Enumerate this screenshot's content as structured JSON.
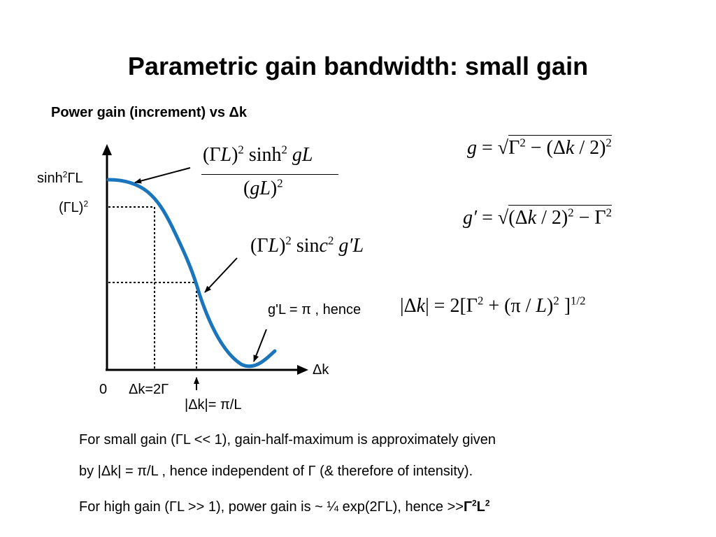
{
  "title": "Parametric gain bandwidth: small gain",
  "subtitle": "Power gain (increment) vs Δk",
  "axis": {
    "y_label_1": "sinh²ΓL",
    "y_label_2": "(ΓL)²",
    "x_label": "Δk",
    "origin": "0",
    "tick_1": "Δk=2Γ",
    "tick_2": "|Δk|= π/L"
  },
  "formulas": {
    "sinh_numerator": "(ΓL)² sinh² gL",
    "sinh_denominator": "(gL)²",
    "sinc": "(ΓL)² sinc² g′L",
    "g_def": "g = √(Γ² − (Δk / 2)²)",
    "gprime_def": "g′ = √((Δk / 2)² − Γ²)",
    "condition_prefix": "g'L = π ,  hence",
    "condition": "|Δk| = 2[Γ² + (π / L)²]^(1/2)"
  },
  "text": {
    "line1": "For small gain  (ΓL << 1), gain-half-maximum is approximately given",
    "line2": "by |Δk| = π/L ,  hence independent of Γ  (& therefore of intensity).",
    "line3_prefix": "For high gain  (ΓL >> 1), power gain is  ~  ¼ exp(2ΓL), hence >>",
    "line3_suffix": "Γ²L²"
  },
  "colors": {
    "curve": "#1a75bc",
    "text": "#000000"
  }
}
